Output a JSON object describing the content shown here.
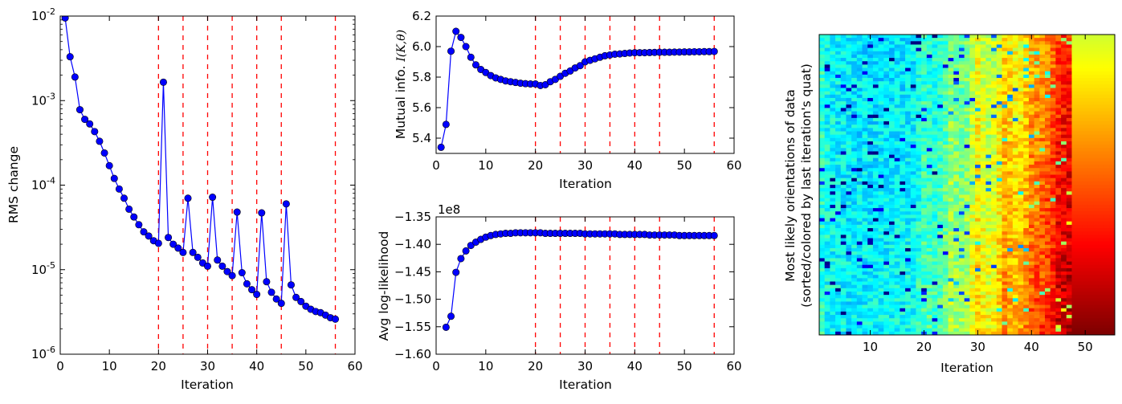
{
  "chart_data": [
    {
      "type": "line",
      "xlabel": "Iteration",
      "ylabel": "RMS change",
      "xlim": [
        0,
        60
      ],
      "ylim": [
        1e-06,
        0.01
      ],
      "yscale": "log",
      "xticks": [
        "0",
        "10",
        "20",
        "30",
        "40",
        "50",
        "60"
      ],
      "yticks": [
        {
          "base": "10",
          "exp": "-6",
          "value": 1e-06
        },
        {
          "base": "10",
          "exp": "-5",
          "value": 1e-05
        },
        {
          "base": "10",
          "exp": "-4",
          "value": 0.0001
        },
        {
          "base": "10",
          "exp": "-3",
          "value": 0.001
        },
        {
          "base": "10",
          "exp": "-2",
          "value": 0.01
        }
      ],
      "marker": "circle",
      "line_color": "#0000ff",
      "vlines": [
        20,
        25,
        30,
        35,
        40,
        45,
        56
      ],
      "vline_color": "#ff0000",
      "vline_style": "dashed",
      "x": [
        1,
        2,
        3,
        4,
        5,
        6,
        7,
        8,
        9,
        10,
        11,
        12,
        13,
        14,
        15,
        16,
        17,
        18,
        19,
        20,
        21,
        22,
        23,
        24,
        25,
        26,
        27,
        28,
        29,
        30,
        31,
        32,
        33,
        34,
        35,
        36,
        37,
        38,
        39,
        40,
        41,
        42,
        43,
        44,
        45,
        46,
        47,
        48,
        49,
        50,
        51,
        52,
        53,
        54,
        55,
        56
      ],
      "y": [
        0.0095,
        0.0033,
        0.0019,
        0.00078,
        0.0006,
        0.00053,
        0.00043,
        0.00033,
        0.00024,
        0.00017,
        0.00012,
        9e-05,
        7e-05,
        5.2e-05,
        4.2e-05,
        3.4e-05,
        2.8e-05,
        2.5e-05,
        2.2e-05,
        2.05e-05,
        0.00165,
        2.4e-05,
        2e-05,
        1.8e-05,
        1.6e-05,
        7e-05,
        1.6e-05,
        1.4e-05,
        1.2e-05,
        1.1e-05,
        7.2e-05,
        1.3e-05,
        1.1e-05,
        9.5e-06,
        8.5e-06,
        4.8e-05,
        9.2e-06,
        6.8e-06,
        5.8e-06,
        5.1e-06,
        4.7e-05,
        7.2e-06,
        5.4e-06,
        4.5e-06,
        4e-06,
        6e-05,
        6.6e-06,
        4.7e-06,
        4.2e-06,
        3.7e-06,
        3.4e-06,
        3.2e-06,
        3.1e-06,
        2.9e-06,
        2.7e-06,
        2.6e-06
      ]
    },
    {
      "type": "line",
      "xlabel": "Iteration",
      "ylabel": "Mutual info. ",
      "ylabel_math": "I(K,θ)",
      "xlim": [
        0,
        60
      ],
      "ylim": [
        5.3,
        6.2
      ],
      "xticks": [
        "0",
        "10",
        "20",
        "30",
        "40",
        "50",
        "60"
      ],
      "yticks": [
        "5.4",
        "5.6",
        "5.8",
        "6.0",
        "6.2"
      ],
      "marker": "circle",
      "line_color": "#0000ff",
      "vlines": [
        20,
        25,
        30,
        35,
        40,
        45,
        56
      ],
      "vline_color": "#ff0000",
      "vline_style": "dashed",
      "x": [
        1,
        2,
        3,
        4,
        5,
        6,
        7,
        8,
        9,
        10,
        11,
        12,
        13,
        14,
        15,
        16,
        17,
        18,
        19,
        20,
        21,
        22,
        23,
        24,
        25,
        26,
        27,
        28,
        29,
        30,
        31,
        32,
        33,
        34,
        35,
        36,
        37,
        38,
        39,
        40,
        41,
        42,
        43,
        44,
        45,
        46,
        47,
        48,
        49,
        50,
        51,
        52,
        53,
        54,
        55,
        56
      ],
      "y": [
        5.34,
        5.49,
        5.97,
        6.1,
        6.06,
        6.0,
        5.93,
        5.88,
        5.85,
        5.83,
        5.81,
        5.795,
        5.785,
        5.775,
        5.77,
        5.765,
        5.76,
        5.757,
        5.755,
        5.755,
        5.745,
        5.75,
        5.77,
        5.785,
        5.805,
        5.825,
        5.84,
        5.86,
        5.875,
        5.9,
        5.91,
        5.92,
        5.93,
        5.94,
        5.945,
        5.95,
        5.952,
        5.955,
        5.958,
        5.96,
        5.96,
        5.96,
        5.961,
        5.962,
        5.963,
        5.963,
        5.963,
        5.964,
        5.964,
        5.965,
        5.965,
        5.966,
        5.966,
        5.967,
        5.967,
        5.968
      ]
    },
    {
      "type": "line",
      "xlabel": "Iteration",
      "ylabel": "Avg log-likelihood",
      "offset_text": "1e8",
      "xlim": [
        0,
        60
      ],
      "ylim": [
        -1.6,
        -1.35
      ],
      "xticks": [
        "0",
        "10",
        "20",
        "30",
        "40",
        "50",
        "60"
      ],
      "yticks": [
        "−1.60",
        "−1.55",
        "−1.50",
        "−1.45",
        "−1.40",
        "−1.35"
      ],
      "marker": "circle",
      "line_color": "#0000ff",
      "vlines": [
        20,
        25,
        30,
        35,
        40,
        45,
        56
      ],
      "vline_color": "#ff0000",
      "vline_style": "dashed",
      "x": [
        2,
        3,
        4,
        5,
        6,
        7,
        8,
        9,
        10,
        11,
        12,
        13,
        14,
        15,
        16,
        17,
        18,
        19,
        20,
        21,
        22,
        23,
        24,
        25,
        26,
        27,
        28,
        29,
        30,
        31,
        32,
        33,
        34,
        35,
        36,
        37,
        38,
        39,
        40,
        41,
        42,
        43,
        44,
        45,
        46,
        47,
        48,
        49,
        50,
        51,
        52,
        53,
        54,
        55,
        56
      ],
      "y": [
        -1.551,
        -1.531,
        -1.451,
        -1.426,
        -1.412,
        -1.402,
        -1.396,
        -1.391,
        -1.387,
        -1.384,
        -1.382,
        -1.381,
        -1.38,
        -1.38,
        -1.379,
        -1.379,
        -1.379,
        -1.379,
        -1.379,
        -1.379,
        -1.38,
        -1.38,
        -1.38,
        -1.38,
        -1.38,
        -1.38,
        -1.38,
        -1.38,
        -1.381,
        -1.381,
        -1.381,
        -1.381,
        -1.381,
        -1.381,
        -1.381,
        -1.382,
        -1.382,
        -1.382,
        -1.382,
        -1.382,
        -1.382,
        -1.383,
        -1.383,
        -1.383,
        -1.383,
        -1.383,
        -1.383,
        -1.384,
        -1.384,
        -1.384,
        -1.384,
        -1.384,
        -1.384,
        -1.384,
        -1.384
      ]
    },
    {
      "type": "heatmap",
      "xlabel": "Iteration",
      "ylabel": "Most likely orientations of data",
      "ylabel2": "(sorted/colored by last iteration's quat)",
      "xlim": [
        0.5,
        55.5
      ],
      "xticks": [
        "10",
        "20",
        "30",
        "40",
        "50"
      ],
      "colormap": "jet",
      "n_columns": 55,
      "column_color_value": [
        0.42,
        0.39,
        0.38,
        0.37,
        0.37,
        0.36,
        0.36,
        0.36,
        0.36,
        0.36,
        0.36,
        0.36,
        0.36,
        0.37,
        0.37,
        0.37,
        0.37,
        0.37,
        0.4,
        0.44,
        0.43,
        0.42,
        0.44,
        0.47,
        0.53,
        0.51,
        0.5,
        0.52,
        0.58,
        0.64,
        0.6,
        0.58,
        0.6,
        0.64,
        0.7,
        0.68,
        0.66,
        0.66,
        0.7,
        0.75,
        0.76,
        0.77,
        0.79,
        0.82,
        0.87,
        0.89,
        0.9,
        0.91,
        0.91,
        0.92,
        0.92,
        0.92,
        0.92,
        0.92,
        0.92
      ]
    }
  ]
}
